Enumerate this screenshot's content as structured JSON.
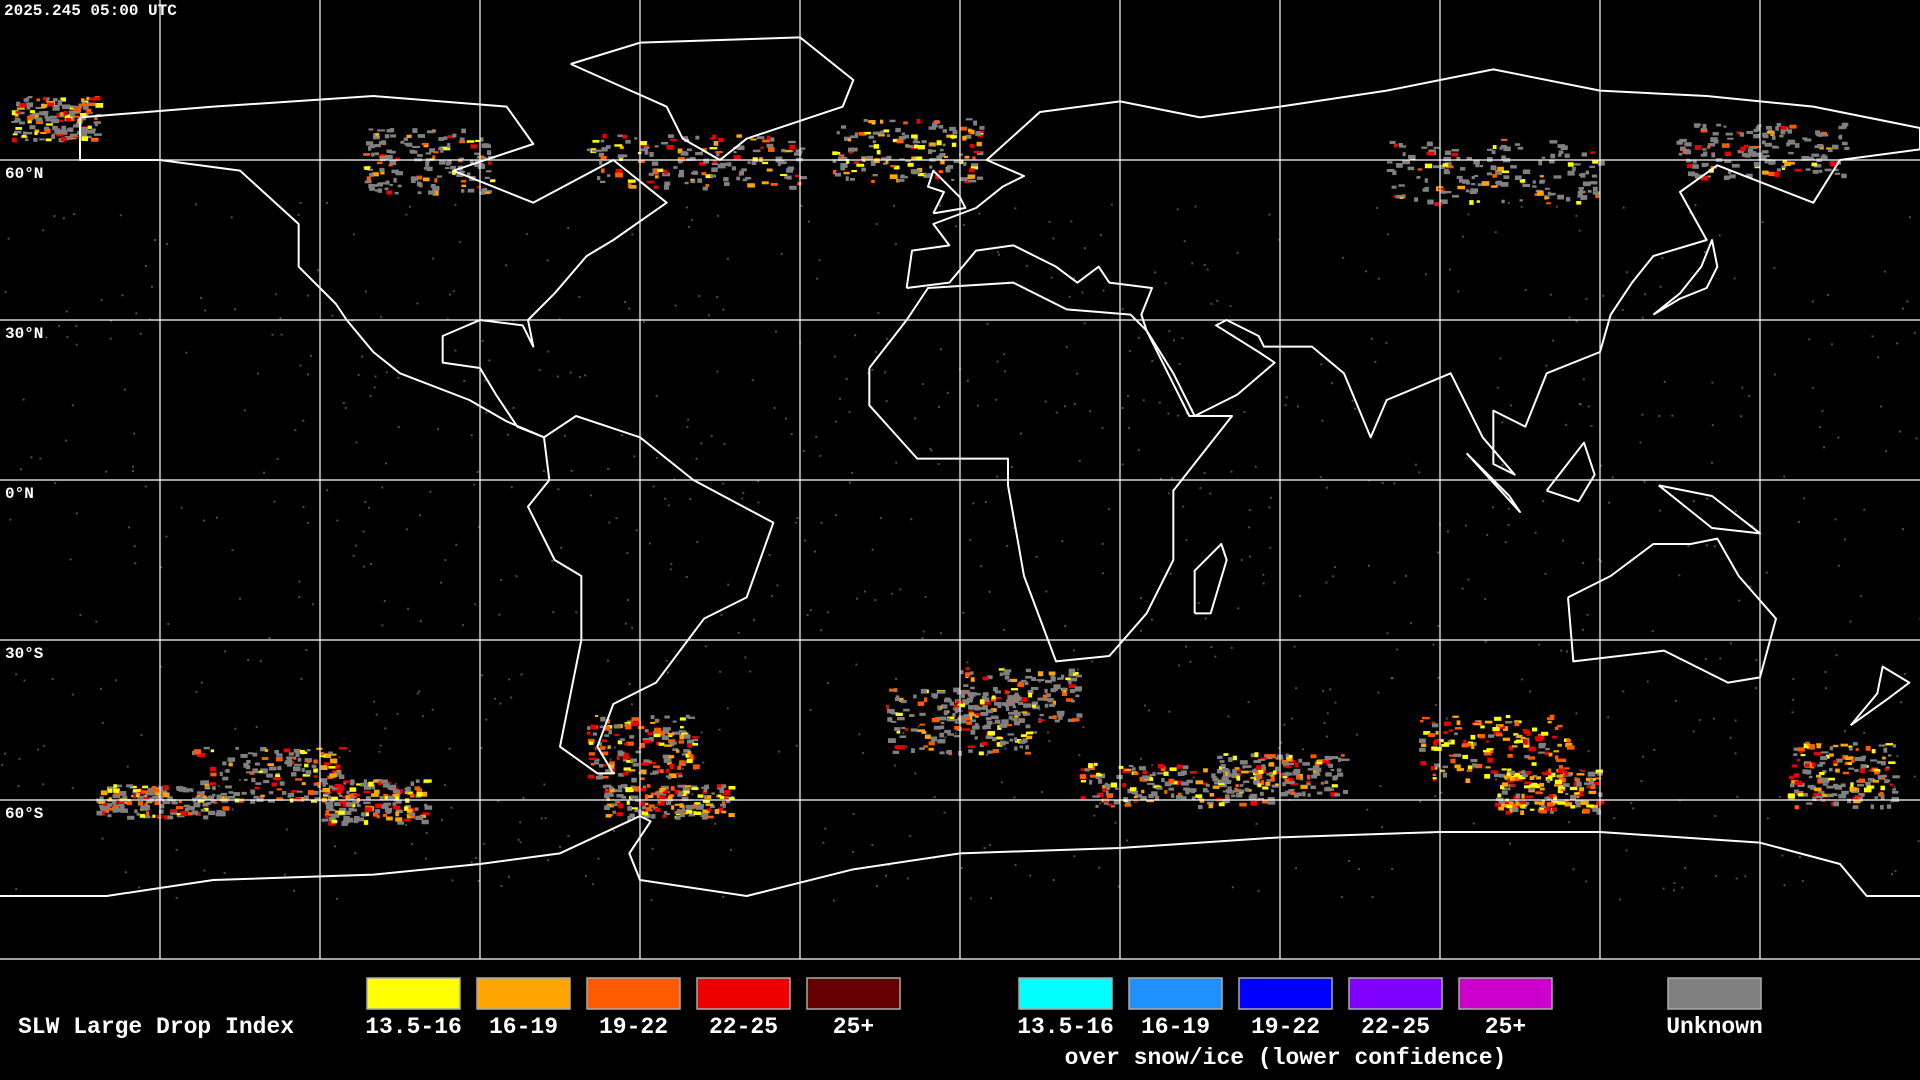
{
  "timestamp": "2025.245 05:00 UTC",
  "lat_labels": [
    "60°N",
    "30°N",
    "0°N",
    "30°S",
    "60°S"
  ],
  "legend": {
    "title": "SLW Large Drop Index",
    "groups": [
      {
        "items": [
          {
            "label": "13.5-16",
            "color": "#ffff00"
          },
          {
            "label": "16-19",
            "color": "#ffa500"
          },
          {
            "label": "19-22",
            "color": "#ff5a00"
          },
          {
            "label": "22-25",
            "color": "#ee0000"
          },
          {
            "label": "25+",
            "color": "#660000"
          }
        ]
      },
      {
        "items": [
          {
            "label": "13.5-16",
            "color": "#00ffff"
          },
          {
            "label": "16-19",
            "color": "#1e90ff"
          },
          {
            "label": "19-22",
            "color": "#0000ff"
          },
          {
            "label": "22-25",
            "color": "#7f00ff"
          },
          {
            "label": "25+",
            "color": "#cc00cc"
          }
        ],
        "caption": "over snow/ice (lower confidence)"
      },
      {
        "items": [
          {
            "label": "Unknown",
            "color": "#808080"
          }
        ]
      }
    ]
  }
}
